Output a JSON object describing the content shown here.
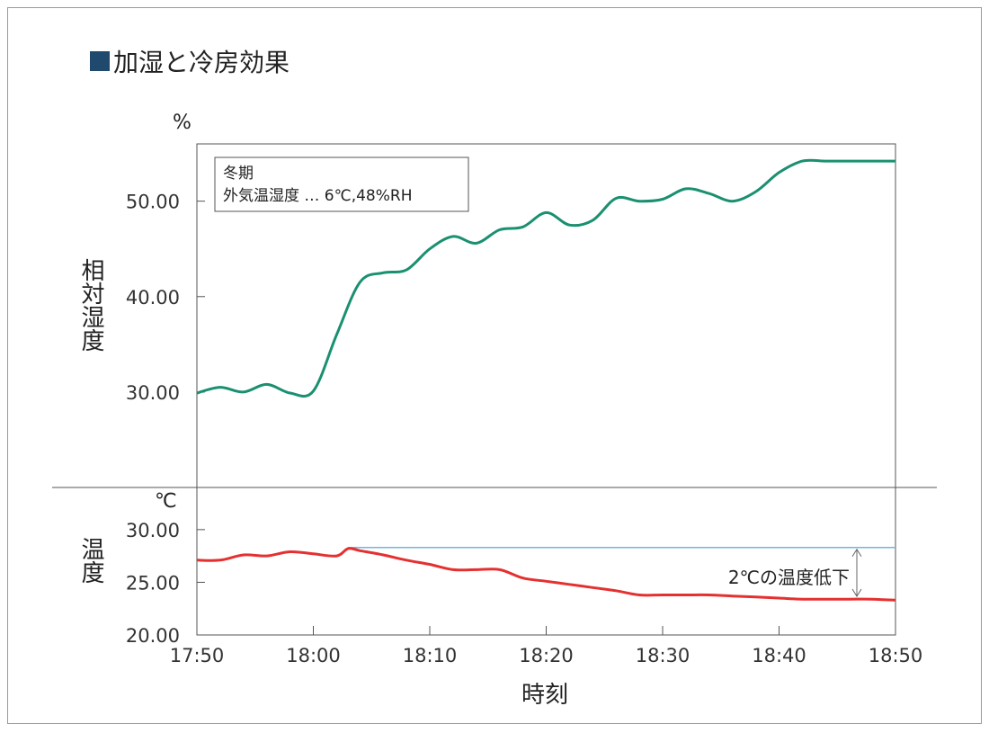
{
  "title": "加湿と冷房効果",
  "chart_data": [
    {
      "type": "line",
      "panel": "humidity",
      "unit": "%",
      "ylabel": "相対湿度",
      "yticks": [
        "30.00",
        "40.00",
        "50.00"
      ],
      "ylim": [
        20,
        56
      ],
      "xlim": [
        0,
        60
      ],
      "xticks": [
        "17:50",
        "18:00",
        "18:10",
        "18:20",
        "18:30",
        "18:40",
        "18:50"
      ],
      "xlabel": "時刻",
      "note_lines": [
        "冬期",
        "外気温湿度 … 6℃,48%RH"
      ],
      "series": [
        {
          "color": "#1a9070",
          "x": [
            0,
            2,
            4,
            6,
            8,
            10,
            12,
            14,
            16,
            18,
            20,
            22,
            24,
            26,
            28,
            30,
            32,
            34,
            36,
            38,
            40,
            42,
            44,
            46,
            48,
            50,
            52,
            54,
            56,
            58,
            60
          ],
          "y": [
            29.9,
            30.5,
            30.0,
            30.8,
            29.9,
            30.1,
            36.0,
            41.5,
            42.5,
            42.8,
            45.0,
            46.3,
            45.6,
            47.0,
            47.3,
            48.8,
            47.5,
            48.0,
            50.3,
            50.0,
            50.2,
            51.3,
            50.8,
            50.0,
            51.0,
            53.0,
            54.2,
            54.2,
            54.2,
            54.2,
            54.2
          ]
        }
      ]
    },
    {
      "type": "line",
      "panel": "temperature",
      "unit": "℃",
      "ylabel": "温度",
      "yticks": [
        "20.00",
        "25.00",
        "30.00"
      ],
      "ylim": [
        20,
        34
      ],
      "xlim": [
        0,
        60
      ],
      "reference_y": 28.3,
      "reference_color": "#6fb8dc",
      "annotation": "2℃の温度低下",
      "series": [
        {
          "color": "#e53030",
          "x": [
            0,
            2,
            4,
            6,
            8,
            10,
            12,
            13,
            14,
            16,
            18,
            20,
            22,
            24,
            26,
            28,
            30,
            32,
            34,
            36,
            38,
            40,
            42,
            44,
            46,
            48,
            50,
            52,
            54,
            56,
            58,
            60
          ],
          "y": [
            27.1,
            27.1,
            27.6,
            27.5,
            27.9,
            27.7,
            27.5,
            28.2,
            28.0,
            27.6,
            27.1,
            26.7,
            26.2,
            26.2,
            26.2,
            25.4,
            25.1,
            24.8,
            24.5,
            24.2,
            23.8,
            23.8,
            23.8,
            23.8,
            23.7,
            23.6,
            23.5,
            23.4,
            23.4,
            23.4,
            23.4,
            23.3
          ]
        }
      ]
    }
  ]
}
